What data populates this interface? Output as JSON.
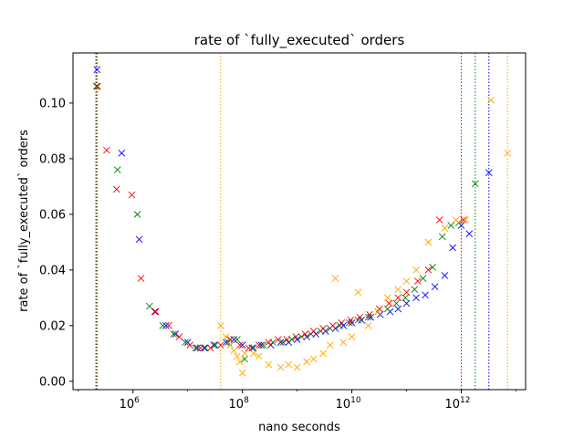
{
  "chart_data": {
    "type": "scatter",
    "title": "rate of `fully_executed` orders",
    "xlabel": "nano seconds",
    "ylabel": "rate of `fully_executed` orders",
    "xscale": "log",
    "xlim": [
      80000,
      15000000000000
    ],
    "ylim": [
      -0.003,
      0.118
    ],
    "grid": false,
    "marker": "x",
    "xticks": [
      {
        "value": 1000000,
        "base": "10",
        "exp": "6"
      },
      {
        "value": 100000000,
        "base": "10",
        "exp": "8"
      },
      {
        "value": 10000000000,
        "base": "10",
        "exp": "10"
      },
      {
        "value": 1000000000000,
        "base": "10",
        "exp": "12"
      }
    ],
    "yticks": [
      {
        "value": 0.0,
        "label": "0.00"
      },
      {
        "value": 0.02,
        "label": "0.02"
      },
      {
        "value": 0.04,
        "label": "0.04"
      },
      {
        "value": 0.06,
        "label": "0.06"
      },
      {
        "value": 0.08,
        "label": "0.08"
      },
      {
        "value": 0.1,
        "label": "0.10"
      }
    ],
    "vlines": [
      {
        "x": 210000,
        "color": "#0000ff"
      },
      {
        "x": 215000,
        "color": "#008000"
      },
      {
        "x": 220000,
        "color": "#ff0000"
      },
      {
        "x": 225000,
        "color": "#ffa500"
      },
      {
        "x": 40000000,
        "color": "#ffa500"
      },
      {
        "x": 1000000000000,
        "color": "#ff0000"
      },
      {
        "x": 1800000000000,
        "color": "#008000"
      },
      {
        "x": 3200000000000,
        "color": "#0000ff"
      },
      {
        "x": 7000000000000,
        "color": "#ffa500"
      }
    ],
    "series": [
      {
        "color": "#0000ff",
        "points": [
          [
            220000,
            0.112
          ],
          [
            620000,
            0.082
          ],
          [
            1300000,
            0.051
          ],
          [
            2500000,
            0.025
          ],
          [
            4000000,
            0.02
          ],
          [
            6000000,
            0.017
          ],
          [
            10000000,
            0.014
          ],
          [
            15000000,
            0.012
          ],
          [
            20000000,
            0.012
          ],
          [
            30000000,
            0.013
          ],
          [
            50000000,
            0.014
          ],
          [
            70000000,
            0.015
          ],
          [
            100000000,
            0.013
          ],
          [
            150000000,
            0.012
          ],
          [
            220000000,
            0.013
          ],
          [
            330000000,
            0.013
          ],
          [
            500000000,
            0.014
          ],
          [
            700000000,
            0.014
          ],
          [
            1000000000,
            0.015
          ],
          [
            1500000000,
            0.016
          ],
          [
            2200000000,
            0.017
          ],
          [
            3300000000,
            0.018
          ],
          [
            5000000000,
            0.019
          ],
          [
            7000000000,
            0.02
          ],
          [
            10000000000,
            0.021
          ],
          [
            15000000000,
            0.022
          ],
          [
            22000000000,
            0.023
          ],
          [
            33000000000,
            0.024
          ],
          [
            50000000000,
            0.025
          ],
          [
            70000000000,
            0.026
          ],
          [
            100000000000,
            0.028
          ],
          [
            150000000000,
            0.03
          ],
          [
            220000000000,
            0.031
          ],
          [
            330000000000,
            0.034
          ],
          [
            500000000000,
            0.038
          ],
          [
            700000000000,
            0.048
          ],
          [
            1000000000000,
            0.056
          ],
          [
            1400000000000,
            0.053
          ],
          [
            3200000000000,
            0.075
          ]
        ]
      },
      {
        "color": "#008000",
        "points": [
          [
            215000,
            0.106
          ],
          [
            520000,
            0.076
          ],
          [
            1200000,
            0.06
          ],
          [
            2000000,
            0.027
          ],
          [
            3500000,
            0.02
          ],
          [
            5500000,
            0.017
          ],
          [
            9000000,
            0.014
          ],
          [
            14000000,
            0.012
          ],
          [
            21000000,
            0.012
          ],
          [
            32000000,
            0.013
          ],
          [
            55000000,
            0.014
          ],
          [
            80000000,
            0.015
          ],
          [
            110000000,
            0.008
          ],
          [
            160000000,
            0.012
          ],
          [
            240000000,
            0.013
          ],
          [
            360000000,
            0.014
          ],
          [
            550000000,
            0.014
          ],
          [
            800000000,
            0.015
          ],
          [
            1200000000,
            0.016
          ],
          [
            1800000000,
            0.017
          ],
          [
            2700000000,
            0.018
          ],
          [
            4000000000,
            0.019
          ],
          [
            6000000000,
            0.02
          ],
          [
            9000000000,
            0.021
          ],
          [
            13000000000,
            0.022
          ],
          [
            20000000000,
            0.023
          ],
          [
            30000000000,
            0.025
          ],
          [
            45000000000,
            0.026
          ],
          [
            65000000000,
            0.028
          ],
          [
            95000000000,
            0.03
          ],
          [
            140000000000,
            0.033
          ],
          [
            200000000000,
            0.037
          ],
          [
            300000000000,
            0.041
          ],
          [
            450000000000,
            0.052
          ],
          [
            650000000000,
            0.056
          ],
          [
            900000000000,
            0.057
          ],
          [
            1800000000000,
            0.071
          ]
        ]
      },
      {
        "color": "#ff0000",
        "points": [
          [
            225000,
            0.106
          ],
          [
            330000,
            0.083
          ],
          [
            500000,
            0.069
          ],
          [
            950000,
            0.067
          ],
          [
            1400000,
            0.037
          ],
          [
            2600000,
            0.025
          ],
          [
            4500000,
            0.02
          ],
          [
            7000000,
            0.016
          ],
          [
            11000000,
            0.013
          ],
          [
            17000000,
            0.012
          ],
          [
            26000000,
            0.012
          ],
          [
            40000000,
            0.013
          ],
          [
            60000000,
            0.015
          ],
          [
            90000000,
            0.013
          ],
          [
            130000000,
            0.012
          ],
          [
            200000000,
            0.013
          ],
          [
            300000000,
            0.014
          ],
          [
            450000000,
            0.015
          ],
          [
            650000000,
            0.015
          ],
          [
            950000000,
            0.016
          ],
          [
            1400000000,
            0.017
          ],
          [
            2000000000,
            0.018
          ],
          [
            3000000000,
            0.019
          ],
          [
            4500000000,
            0.02
          ],
          [
            6500000000,
            0.021
          ],
          [
            9500000000,
            0.022
          ],
          [
            14000000000,
            0.023
          ],
          [
            21000000000,
            0.024
          ],
          [
            32000000000,
            0.026
          ],
          [
            48000000000,
            0.028
          ],
          [
            70000000000,
            0.03
          ],
          [
            100000000000,
            0.032
          ],
          [
            160000000000,
            0.036
          ],
          [
            250000000000,
            0.04
          ],
          [
            400000000000,
            0.058
          ],
          [
            1100000000000,
            0.058
          ]
        ]
      },
      {
        "color": "#ffa500",
        "points": [
          [
            40000000,
            0.02
          ],
          [
            50000000,
            0.016
          ],
          [
            60000000,
            0.013
          ],
          [
            70000000,
            0.011
          ],
          [
            80000000,
            0.009
          ],
          [
            90000000,
            0.007
          ],
          [
            100000000,
            0.003
          ],
          [
            110000000,
            0.01
          ],
          [
            160000000,
            0.01
          ],
          [
            200000000,
            0.009
          ],
          [
            300000000,
            0.006
          ],
          [
            500000000,
            0.005
          ],
          [
            700000000,
            0.006
          ],
          [
            1000000000,
            0.005
          ],
          [
            1500000000,
            0.007
          ],
          [
            2000000000,
            0.008
          ],
          [
            3000000000,
            0.01
          ],
          [
            4000000000,
            0.013
          ],
          [
            5000000000,
            0.037
          ],
          [
            7000000000,
            0.014
          ],
          [
            10000000000,
            0.016
          ],
          [
            13000000000,
            0.032
          ],
          [
            20000000000,
            0.02
          ],
          [
            30000000000,
            0.025
          ],
          [
            45000000000,
            0.03
          ],
          [
            70000000000,
            0.033
          ],
          [
            100000000000,
            0.036
          ],
          [
            150000000000,
            0.04
          ],
          [
            250000000000,
            0.05
          ],
          [
            500000000000,
            0.055
          ],
          [
            800000000000,
            0.058
          ],
          [
            1200000000000,
            0.058
          ],
          [
            3500000000000,
            0.101
          ],
          [
            7000000000000,
            0.082
          ]
        ]
      }
    ]
  }
}
